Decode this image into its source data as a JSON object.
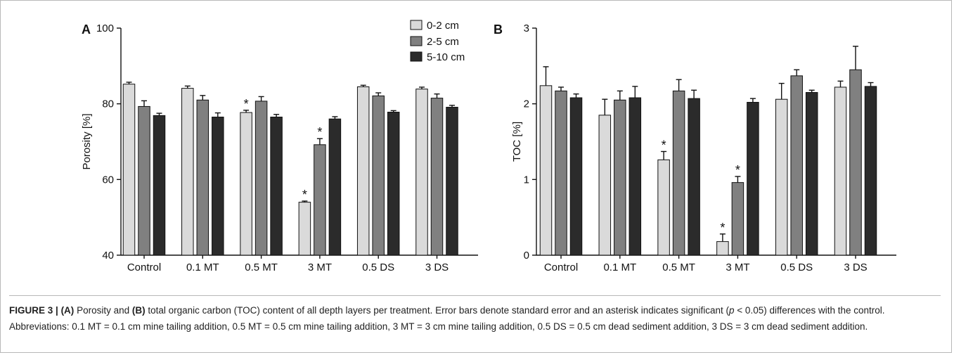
{
  "colors": {
    "d0_2": "#dadada",
    "d2_5": "#808080",
    "d5_10": "#2b2b2b",
    "outline": "#111111"
  },
  "legend": [
    "0-2 cm",
    "2-5 cm",
    "5-10 cm"
  ],
  "chart_data": [
    {
      "type": "bar",
      "panel": "A",
      "ylabel": "Porosity [%]",
      "ylim": [
        40,
        100
      ],
      "yticks": [
        "40",
        "60",
        "80",
        "100"
      ],
      "categories": [
        "Control",
        "0.1 MT",
        "0.5 MT",
        "3 MT",
        "0.5 DS",
        "3 DS"
      ],
      "series": [
        {
          "name": "0-2 cm",
          "values": [
            85.2,
            84.1,
            77.7,
            54.0,
            84.5,
            83.9
          ],
          "errors": [
            0.5,
            0.6,
            0.6,
            0.3,
            0.4,
            0.5
          ],
          "significant": [
            false,
            false,
            true,
            true,
            false,
            false
          ]
        },
        {
          "name": "2-5 cm",
          "values": [
            79.3,
            81.0,
            80.7,
            69.2,
            82.1,
            81.5
          ],
          "errors": [
            1.5,
            1.2,
            1.2,
            1.6,
            0.8,
            1.1
          ],
          "significant": [
            false,
            false,
            false,
            true,
            false,
            false
          ]
        },
        {
          "name": "5-10 cm",
          "values": [
            76.9,
            76.5,
            76.5,
            76.0,
            77.8,
            79.1
          ],
          "errors": [
            0.6,
            1.1,
            0.7,
            0.6,
            0.4,
            0.5
          ],
          "significant": [
            false,
            false,
            false,
            false,
            false,
            false
          ]
        }
      ]
    },
    {
      "type": "bar",
      "panel": "B",
      "ylabel": "TOC [%]",
      "ylim": [
        0,
        3
      ],
      "yticks": [
        "0",
        "1",
        "2",
        "3"
      ],
      "categories": [
        "Control",
        "0.1 MT",
        "0.5 MT",
        "3 MT",
        "0.5 DS",
        "3 DS"
      ],
      "series": [
        {
          "name": "0-2 cm",
          "values": [
            2.24,
            1.85,
            1.26,
            0.18,
            2.06,
            2.22
          ],
          "errors": [
            0.25,
            0.21,
            0.11,
            0.1,
            0.21,
            0.08
          ],
          "significant": [
            false,
            false,
            true,
            true,
            false,
            false
          ]
        },
        {
          "name": "2-5 cm",
          "values": [
            2.17,
            2.05,
            2.17,
            0.96,
            2.37,
            2.45
          ],
          "errors": [
            0.05,
            0.12,
            0.15,
            0.08,
            0.08,
            0.31
          ],
          "significant": [
            false,
            false,
            false,
            true,
            false,
            false
          ]
        },
        {
          "name": "5-10 cm",
          "values": [
            2.08,
            2.08,
            2.07,
            2.02,
            2.15,
            2.23
          ],
          "errors": [
            0.05,
            0.15,
            0.11,
            0.05,
            0.03,
            0.05
          ],
          "significant": [
            false,
            false,
            false,
            false,
            false,
            false
          ]
        }
      ]
    }
  ],
  "caption": {
    "label": "FIGURE 3 |",
    "part_a_tag": "(A)",
    "part_a_text": " Porosity and ",
    "part_b_tag": "(B)",
    "part_b_text": " total organic carbon (TOC) content of all depth layers per treatment. Error bars denote standard error and an asterisk indicates significant (",
    "p_symbol": "p",
    "text_after_p": " < 0.05) differences with the control. Abbreviations: 0.1 MT = 0.1 cm mine tailing addition, 0.5 MT = 0.5 cm mine tailing addition, 3 MT = 3 cm mine tailing addition, 0.5 DS = 0.5 cm dead sediment addition, 3 DS = 3 cm dead sediment addition."
  }
}
